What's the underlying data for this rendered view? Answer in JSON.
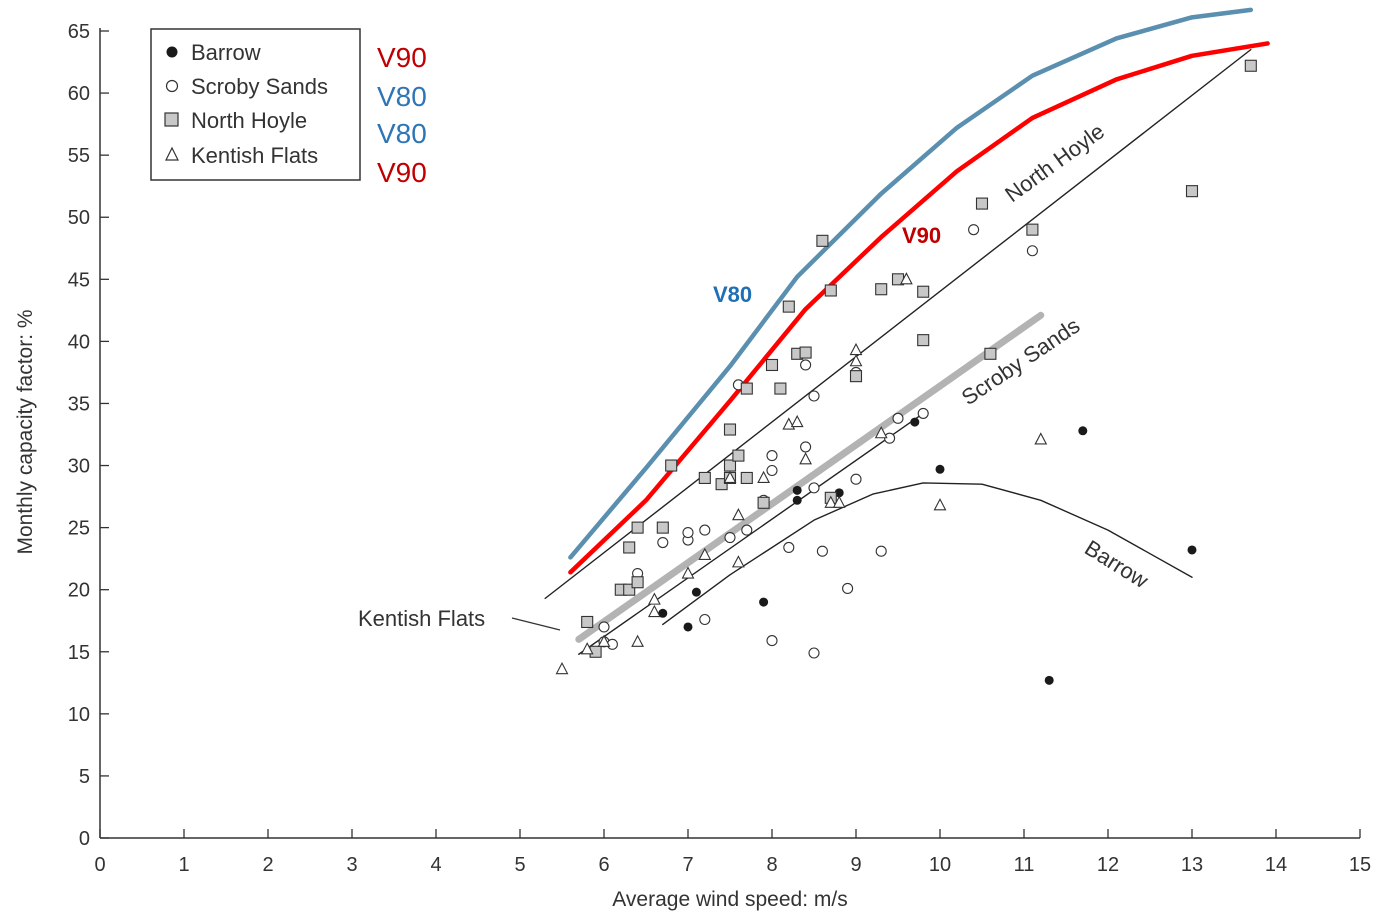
{
  "chart_data": {
    "type": "scatter",
    "xlabel": "Average wind speed: m/s",
    "ylabel": "Monthly capacity factor: %",
    "xlim": [
      0,
      15
    ],
    "ylim": [
      0,
      65
    ],
    "xticks": [
      "0",
      "1",
      "2",
      "3",
      "4",
      "5",
      "6",
      "7",
      "8",
      "9",
      "10",
      "11",
      "12",
      "13",
      "14",
      "15"
    ],
    "yticks": [
      "0",
      "5",
      "10",
      "15",
      "20",
      "25",
      "30",
      "35",
      "40",
      "45",
      "50",
      "55",
      "60",
      "65"
    ],
    "grid": false,
    "legend_position": "top-left",
    "legend": [
      {
        "name": "Barrow",
        "marker": "filled-circle",
        "turbine": "V90",
        "turbine_color": "#c00000"
      },
      {
        "name": "Scroby Sands",
        "marker": "open-circle",
        "turbine": "V80",
        "turbine_color": "#2e75b6"
      },
      {
        "name": "North Hoyle",
        "marker": "grey-square",
        "turbine": "V80",
        "turbine_color": "#2e75b6"
      },
      {
        "name": "Kentish Flats",
        "marker": "open-triangle",
        "turbine": "V90",
        "turbine_color": "#c00000"
      }
    ],
    "series": [
      {
        "name": "Barrow",
        "marker": "filled-circle",
        "points": [
          [
            6.7,
            18.1
          ],
          [
            7.0,
            17.0
          ],
          [
            7.1,
            19.8
          ],
          [
            7.9,
            19.0
          ],
          [
            8.3,
            27.2
          ],
          [
            8.3,
            28.0
          ],
          [
            8.8,
            27.8
          ],
          [
            9.7,
            33.5
          ],
          [
            10.0,
            29.7
          ],
          [
            11.3,
            12.7
          ],
          [
            11.7,
            32.8
          ],
          [
            13.0,
            23.2
          ]
        ]
      },
      {
        "name": "Scroby Sands",
        "marker": "open-circle",
        "points": [
          [
            6.0,
            15.8
          ],
          [
            6.0,
            17.0
          ],
          [
            6.1,
            15.6
          ],
          [
            6.4,
            20.8
          ],
          [
            6.4,
            21.3
          ],
          [
            6.7,
            23.8
          ],
          [
            7.0,
            24.0
          ],
          [
            7.0,
            24.6
          ],
          [
            7.2,
            24.8
          ],
          [
            7.2,
            17.6
          ],
          [
            7.5,
            24.2
          ],
          [
            7.7,
            24.8
          ],
          [
            7.9,
            27.2
          ],
          [
            8.0,
            29.6
          ],
          [
            8.0,
            30.8
          ],
          [
            8.0,
            15.9
          ],
          [
            8.2,
            23.4
          ],
          [
            8.4,
            31.5
          ],
          [
            8.5,
            28.2
          ],
          [
            8.5,
            35.6
          ],
          [
            8.6,
            23.1
          ],
          [
            8.5,
            14.9
          ],
          [
            8.4,
            38.1
          ],
          [
            8.9,
            20.1
          ],
          [
            9.0,
            28.9
          ],
          [
            9.0,
            37.5
          ],
          [
            9.3,
            23.1
          ],
          [
            9.4,
            32.2
          ],
          [
            9.5,
            33.8
          ],
          [
            9.8,
            34.2
          ],
          [
            10.4,
            49.0
          ],
          [
            11.1,
            47.3
          ],
          [
            7.6,
            36.5
          ]
        ]
      },
      {
        "name": "North Hoyle",
        "marker": "grey-square",
        "points": [
          [
            5.8,
            17.4
          ],
          [
            5.9,
            15.0
          ],
          [
            6.2,
            20.0
          ],
          [
            6.3,
            20.0
          ],
          [
            6.3,
            23.4
          ],
          [
            6.4,
            25.0
          ],
          [
            6.4,
            20.6
          ],
          [
            6.7,
            25.0
          ],
          [
            6.8,
            30.0
          ],
          [
            7.2,
            29.0
          ],
          [
            7.4,
            28.5
          ],
          [
            7.5,
            29.0
          ],
          [
            7.5,
            30.0
          ],
          [
            7.5,
            32.9
          ],
          [
            7.6,
            30.8
          ],
          [
            7.7,
            29.0
          ],
          [
            7.7,
            36.2
          ],
          [
            7.9,
            27.0
          ],
          [
            8.0,
            38.1
          ],
          [
            8.1,
            36.2
          ],
          [
            8.2,
            42.8
          ],
          [
            8.3,
            39.0
          ],
          [
            8.4,
            39.1
          ],
          [
            8.6,
            48.1
          ],
          [
            8.7,
            27.4
          ],
          [
            8.7,
            44.1
          ],
          [
            9.0,
            37.2
          ],
          [
            9.3,
            44.2
          ],
          [
            9.5,
            45.0
          ],
          [
            9.8,
            44.0
          ],
          [
            9.8,
            40.1
          ],
          [
            10.5,
            51.1
          ],
          [
            10.6,
            39.0
          ],
          [
            11.1,
            49.0
          ],
          [
            13.0,
            52.1
          ],
          [
            13.7,
            62.2
          ]
        ]
      },
      {
        "name": "Kentish Flats",
        "marker": "open-triangle",
        "points": [
          [
            5.5,
            13.6
          ],
          [
            5.8,
            15.2
          ],
          [
            6.0,
            15.8
          ],
          [
            6.4,
            15.8
          ],
          [
            6.6,
            19.2
          ],
          [
            6.6,
            18.2
          ],
          [
            7.0,
            21.3
          ],
          [
            7.2,
            22.8
          ],
          [
            7.5,
            29.0
          ],
          [
            7.6,
            26.0
          ],
          [
            7.6,
            22.2
          ],
          [
            7.9,
            29.0
          ],
          [
            8.2,
            33.3
          ],
          [
            8.3,
            33.5
          ],
          [
            8.4,
            30.5
          ],
          [
            8.7,
            27.0
          ],
          [
            8.8,
            27.0
          ],
          [
            9.0,
            39.3
          ],
          [
            9.0,
            38.4
          ],
          [
            9.3,
            32.6
          ],
          [
            9.6,
            45.0
          ],
          [
            10.0,
            26.8
          ],
          [
            11.2,
            32.1
          ]
        ]
      }
    ],
    "fit_lines": [
      {
        "label": "North Hoyle",
        "style": "thin-black",
        "points": [
          [
            5.3,
            19.3
          ],
          [
            13.7,
            63.5
          ]
        ]
      },
      {
        "label": "Scroby Sands",
        "style": "thick-grey",
        "points": [
          [
            5.7,
            16.0
          ],
          [
            11.2,
            42.1
          ]
        ]
      },
      {
        "label": "Kentish Flats",
        "style": "thin-black",
        "points": [
          [
            5.7,
            14.8
          ],
          [
            9.8,
            34.2
          ]
        ]
      },
      {
        "label": "Barrow",
        "style": "thin-black",
        "points": [
          [
            6.7,
            17.2
          ],
          [
            7.5,
            21.2
          ],
          [
            8.5,
            25.6
          ],
          [
            9.2,
            27.7
          ],
          [
            9.8,
            28.6
          ],
          [
            10.5,
            28.5
          ],
          [
            11.2,
            27.2
          ],
          [
            12.0,
            24.8
          ],
          [
            13.0,
            21.0
          ]
        ]
      }
    ],
    "power_curves": [
      {
        "name": "V80",
        "color": "#5b8fb0",
        "points": [
          [
            5.6,
            22.6
          ],
          [
            6.5,
            29.8
          ],
          [
            7.5,
            38.0
          ],
          [
            8.3,
            45.2
          ],
          [
            9.3,
            51.9
          ],
          [
            10.2,
            57.2
          ],
          [
            11.1,
            61.4
          ],
          [
            12.1,
            64.4
          ],
          [
            13.0,
            66.1
          ],
          [
            13.7,
            66.7
          ]
        ]
      },
      {
        "name": "V90",
        "color": "#ff0000",
        "points": [
          [
            5.6,
            21.4
          ],
          [
            6.5,
            27.2
          ],
          [
            7.5,
            35.2
          ],
          [
            8.4,
            42.6
          ],
          [
            9.3,
            48.4
          ],
          [
            10.2,
            53.7
          ],
          [
            11.1,
            58.0
          ],
          [
            12.1,
            61.1
          ],
          [
            13.0,
            63.0
          ],
          [
            13.9,
            64.0
          ]
        ]
      }
    ],
    "annotations": [
      {
        "text": "North Hoyle"
      },
      {
        "text": "Scroby Sands"
      },
      {
        "text": "Kentish Flats"
      },
      {
        "text": "Barrow"
      },
      {
        "text": "V80",
        "color": "#1f6fb5"
      },
      {
        "text": "V90",
        "color": "#c00000"
      }
    ]
  }
}
